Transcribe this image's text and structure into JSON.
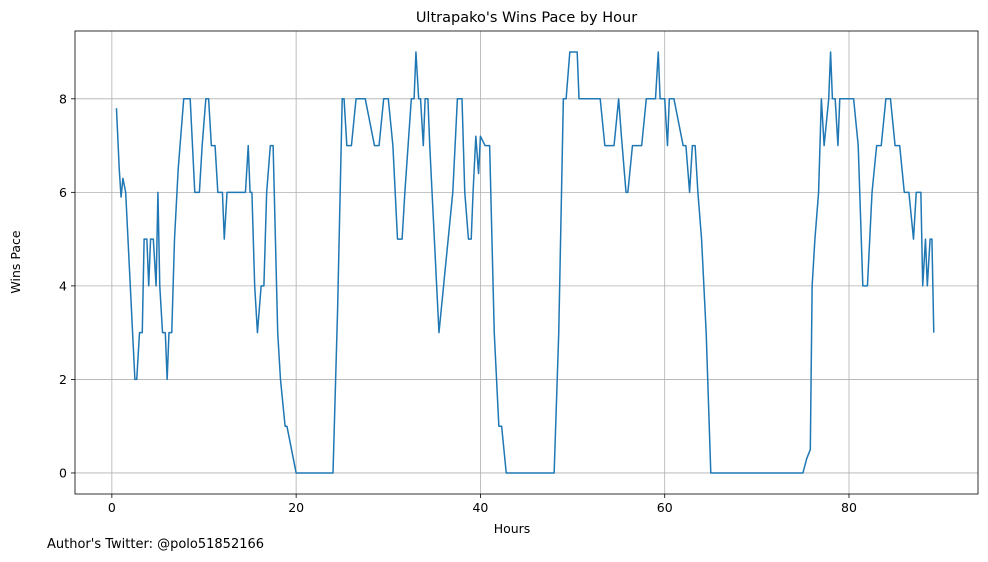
{
  "footer_text": "Author's Twitter: @polo51852166",
  "colors": {
    "line": "#1f77b4",
    "grid": "#b0b0b0",
    "axis": "#000000"
  },
  "chart_data": {
    "type": "line",
    "title": "Ultrapako's Wins Pace by Hour",
    "xlabel": "Hours",
    "ylabel": "Wins Pace",
    "xlim": [
      -4,
      94
    ],
    "ylim": [
      -0.45,
      9.45
    ],
    "xticks": [
      0,
      20,
      40,
      60,
      80
    ],
    "yticks": [
      0,
      2,
      4,
      6,
      8
    ],
    "grid": true,
    "series": [
      {
        "x": [
          0.5,
          0.8,
          1.0,
          1.2,
          1.5,
          2.0,
          2.5,
          2.7,
          3.0,
          3.3,
          3.5,
          3.8,
          4.0,
          4.2,
          4.5,
          4.8,
          5.0,
          5.2,
          5.5,
          5.8,
          6.0,
          6.2,
          6.5,
          6.8,
          7.2,
          7.8,
          8.5,
          9.0,
          9.5,
          9.8,
          10.2,
          10.5,
          10.8,
          11.2,
          11.5,
          11.8,
          12.0,
          12.2,
          12.5,
          13.0,
          14.0,
          14.5,
          14.8,
          15.0,
          15.2,
          15.5,
          15.8,
          16.2,
          16.5,
          16.8,
          17.2,
          17.5,
          18.0,
          18.3,
          18.8,
          19.0,
          20.0,
          22.0,
          24.0,
          24.5,
          25.0,
          25.2,
          25.5,
          26.0,
          26.5,
          26.8,
          27.0,
          27.5,
          28.5,
          29.0,
          29.5,
          30.0,
          30.5,
          31.0,
          31.5,
          31.8,
          32.5,
          32.8,
          33.0,
          33.3,
          33.5,
          33.8,
          34.0,
          34.3,
          34.5,
          35.0,
          35.5,
          36.0,
          36.5,
          37.0,
          37.5,
          38.0,
          38.3,
          38.7,
          39.0,
          39.2,
          39.5,
          39.8,
          40.0,
          40.5,
          41.0,
          41.5,
          42.0,
          42.3,
          42.8,
          43.0,
          44.0,
          46.0,
          48.0,
          48.5,
          49.0,
          49.3,
          49.7,
          50.0,
          50.5,
          50.7,
          51.0,
          53.0,
          53.5,
          54.0,
          54.5,
          55.0,
          55.3,
          55.8,
          56.0,
          56.5,
          57.0,
          57.5,
          58.0,
          59.0,
          59.3,
          59.5,
          60.0,
          60.3,
          60.5,
          61.0,
          62.0,
          62.3,
          62.7,
          63.0,
          63.3,
          63.6,
          64.0,
          64.5,
          65.0,
          66.0,
          70.0,
          74.0,
          75.0,
          75.4,
          75.8,
          76.0,
          76.3,
          76.7,
          77.0,
          77.3,
          77.8,
          78.0,
          78.2,
          78.5,
          78.8,
          79.0,
          79.5,
          80.5,
          81.0,
          81.5,
          82.0,
          82.5,
          83.0,
          83.5,
          84.0,
          84.5,
          85.0,
          85.5,
          86.0,
          86.5,
          87.0,
          87.3,
          87.8,
          88.0,
          88.3,
          88.5,
          88.8,
          89.0,
          89.2
        ],
        "y": [
          7.8,
          6.5,
          5.9,
          6.3,
          6.0,
          4.0,
          2.0,
          2.0,
          3.0,
          3.0,
          5.0,
          5.0,
          4.0,
          5.0,
          5.0,
          4.0,
          6.0,
          4.0,
          3.0,
          3.0,
          2.0,
          3.0,
          3.0,
          5.0,
          6.5,
          8.0,
          8.0,
          6.0,
          6.0,
          7.0,
          8.0,
          8.0,
          7.0,
          7.0,
          6.0,
          6.0,
          6.0,
          5.0,
          6.0,
          6.0,
          6.0,
          6.0,
          7.0,
          6.0,
          6.0,
          4.0,
          3.0,
          4.0,
          4.0,
          6.0,
          7.0,
          7.0,
          3.0,
          2.0,
          1.0,
          1.0,
          0.0,
          0.0,
          0.0,
          3.5,
          8.0,
          8.0,
          7.0,
          7.0,
          8.0,
          8.0,
          8.0,
          8.0,
          7.0,
          7.0,
          8.0,
          8.0,
          7.0,
          5.0,
          5.0,
          6.0,
          8.0,
          8.0,
          9.0,
          8.0,
          8.0,
          7.0,
          8.0,
          8.0,
          7.0,
          5.0,
          3.0,
          4.0,
          5.0,
          6.0,
          8.0,
          8.0,
          6.0,
          5.0,
          5.0,
          6.0,
          7.2,
          6.4,
          7.2,
          7.0,
          7.0,
          3.0,
          1.0,
          1.0,
          0.0,
          0.0,
          0.0,
          0.0,
          0.0,
          3.0,
          8.0,
          8.0,
          9.0,
          9.0,
          9.0,
          8.0,
          8.0,
          8.0,
          7.0,
          7.0,
          7.0,
          8.0,
          7.2,
          6.0,
          6.0,
          7.0,
          7.0,
          7.0,
          8.0,
          8.0,
          9.0,
          8.0,
          8.0,
          7.0,
          8.0,
          8.0,
          7.0,
          7.0,
          6.0,
          7.0,
          7.0,
          6.0,
          5.0,
          3.0,
          0.0,
          0.0,
          0.0,
          0.0,
          0.0,
          0.3,
          0.5,
          4.0,
          5.0,
          6.0,
          8.0,
          7.0,
          8.0,
          9.0,
          8.0,
          8.0,
          7.0,
          8.0,
          8.0,
          8.0,
          7.0,
          4.0,
          4.0,
          6.0,
          7.0,
          7.0,
          8.0,
          8.0,
          7.0,
          7.0,
          6.0,
          6.0,
          5.0,
          6.0,
          6.0,
          4.0,
          5.0,
          4.0,
          5.0,
          5.0,
          3.0
        ]
      }
    ]
  }
}
